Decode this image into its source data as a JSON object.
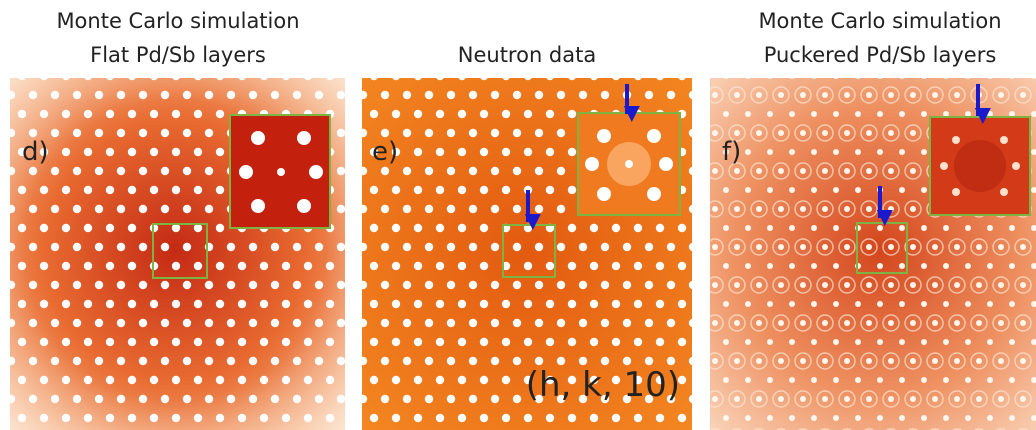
{
  "panels": [
    {
      "title": [
        "Monte Carlo simulation",
        "Flat Pd/Sb layers"
      ],
      "label": "d)"
    },
    {
      "title": [
        "Neutron data"
      ],
      "label": "e)",
      "annotation": "(h, k, 10)"
    },
    {
      "title": [
        "Monte Carlo simulation",
        "Puckered Pd/Sb layers"
      ],
      "label": "f)"
    }
  ]
}
